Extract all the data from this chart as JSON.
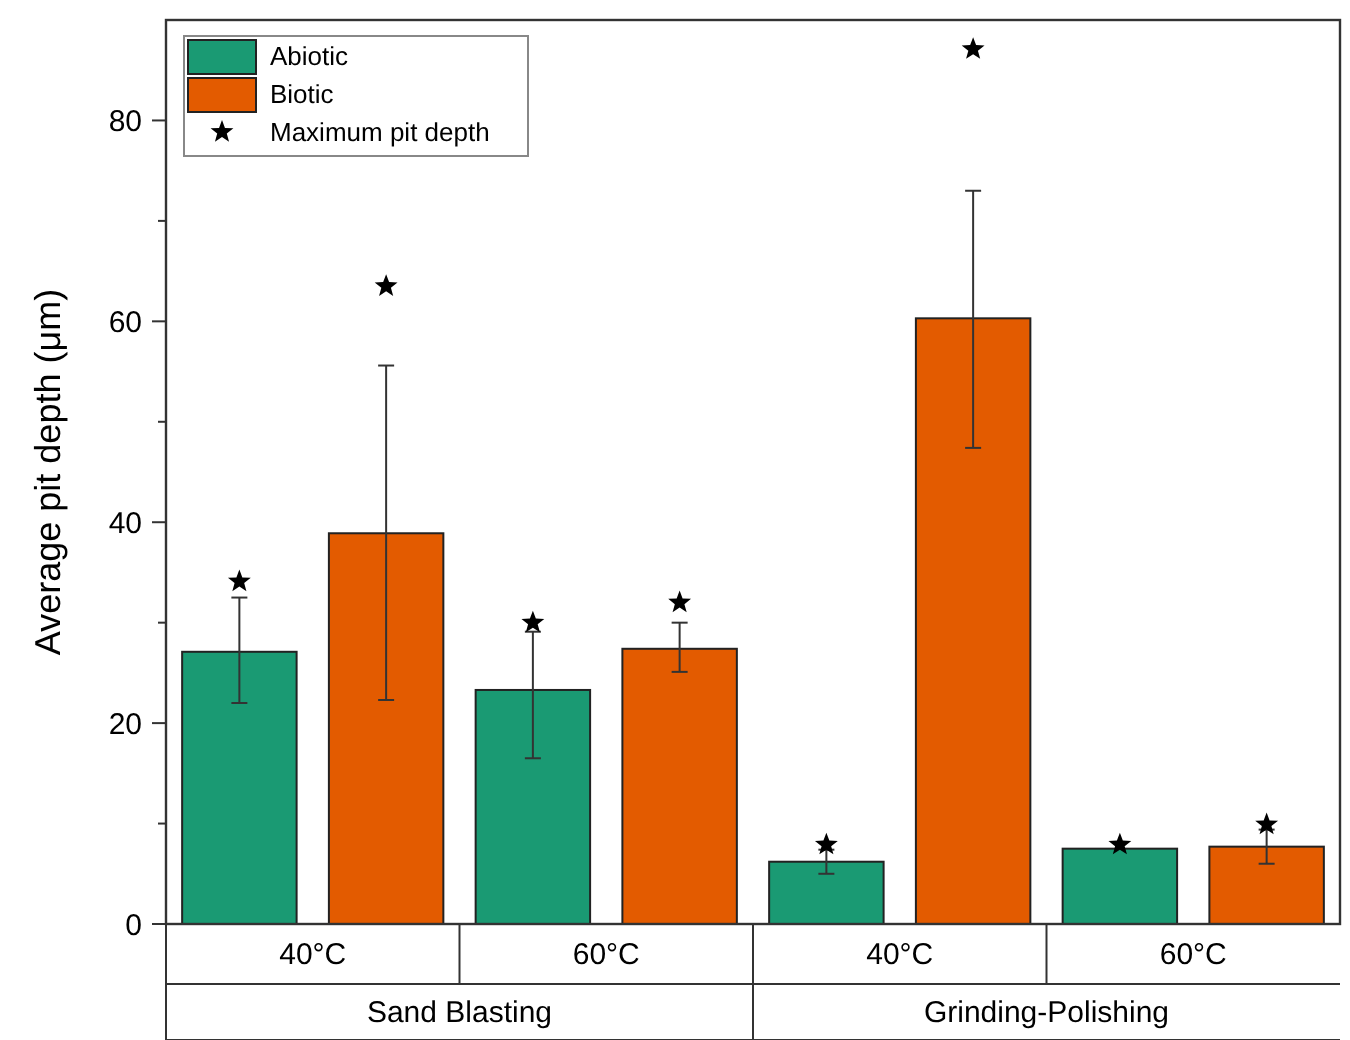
{
  "chart_data": {
    "type": "bar",
    "ylabel": "Average pit depth (μm)",
    "categories": [
      "40°C",
      "60°C",
      "40°C",
      "60°C"
    ],
    "annotations": [
      "Sand Blasting",
      "Grinding-Polishing"
    ],
    "series": [
      {
        "name": "Abiotic",
        "color": "#1a9a73",
        "values": [
          27.1,
          23.3,
          6.2,
          7.5
        ],
        "errors": [
          [
            22.0,
            32.5
          ],
          [
            16.5,
            29.1
          ],
          [
            5.0,
            7.4
          ],
          null
        ]
      },
      {
        "name": "Biotic",
        "color": "#e35b00",
        "values": [
          38.9,
          27.4,
          60.3,
          7.7
        ],
        "errors": [
          [
            22.3,
            55.6
          ],
          [
            25.1,
            30.0
          ],
          [
            47.4,
            73.0
          ],
          [
            6.0,
            9.4
          ]
        ]
      },
      {
        "name": "Maximum pit depth",
        "type": "scatter",
        "color": "#000000",
        "marker": "star",
        "values": [
          34.1,
          30.0,
          7.9,
          7.9
        ]
      },
      {
        "type": "scatter",
        "color": "#000000",
        "marker": "star",
        "values": [
          63.5,
          32.0,
          87.1,
          9.9
        ]
      }
    ],
    "ylim": [
      0,
      90
    ],
    "yticks": [
      0,
      {
        "value": 10,
        "label": null
      },
      20,
      {
        "value": 30,
        "label": null
      },
      40,
      {
        "value": 50,
        "label": null
      },
      60,
      {
        "value": 70,
        "label": null
      },
      80
    ],
    "grid": false,
    "legend": "top left"
  }
}
